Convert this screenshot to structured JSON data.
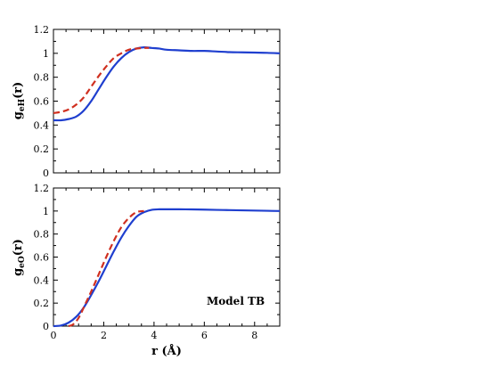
{
  "chart_data": [
    {
      "type": "line",
      "ylabel_main": "g",
      "ylabel_sub": "eH",
      "ylabel_tail": "(r)",
      "xlim": [
        0,
        9
      ],
      "ylim": [
        0,
        1.2
      ],
      "xticks": [
        0,
        2,
        4,
        6,
        8
      ],
      "yticks": [
        0,
        0.2,
        0.4,
        0.6,
        0.8,
        1,
        1.2
      ],
      "ytick_labels": [
        "0",
        "0.2",
        "0.4",
        "0.6",
        "0.8",
        "1",
        "1.2"
      ],
      "series": [
        {
          "style": "solid",
          "color": "#1f3fcf",
          "x": [
            0,
            0.3,
            0.6,
            0.9,
            1.2,
            1.5,
            1.8,
            2.1,
            2.4,
            2.7,
            3.0,
            3.3,
            3.6,
            3.9,
            4.2,
            4.5,
            5,
            5.5,
            6,
            6.5,
            7,
            7.5,
            8,
            8.5,
            9
          ],
          "y": [
            0.44,
            0.44,
            0.45,
            0.47,
            0.52,
            0.6,
            0.7,
            0.8,
            0.89,
            0.96,
            1.01,
            1.04,
            1.05,
            1.045,
            1.04,
            1.03,
            1.025,
            1.02,
            1.02,
            1.015,
            1.01,
            1.008,
            1.006,
            1.004,
            1.0
          ]
        },
        {
          "style": "dashed",
          "color": "#d03020",
          "x": [
            0,
            0.3,
            0.6,
            0.9,
            1.2,
            1.5,
            1.8,
            2.1,
            2.4,
            2.7,
            3.0,
            3.3,
            3.6,
            3.8
          ],
          "y": [
            0.5,
            0.51,
            0.53,
            0.57,
            0.63,
            0.72,
            0.81,
            0.89,
            0.96,
            1.0,
            1.03,
            1.04,
            1.045,
            1.045
          ]
        }
      ]
    },
    {
      "type": "line",
      "ylabel_main": "g",
      "ylabel_sub": "eO",
      "ylabel_tail": "(r)",
      "xlabel": "r (Å)",
      "annotation": "Model TB",
      "xlim": [
        0,
        9
      ],
      "ylim": [
        0,
        1.2
      ],
      "xticks": [
        0,
        2,
        4,
        6,
        8
      ],
      "xtick_labels": [
        "0",
        "2",
        "4",
        "6",
        "8"
      ],
      "yticks": [
        0,
        0.2,
        0.4,
        0.6,
        0.8,
        1,
        1.2
      ],
      "ytick_labels": [
        "0",
        "0.2",
        "0.4",
        "0.6",
        "0.8",
        "1",
        "1.2"
      ],
      "series": [
        {
          "style": "solid",
          "color": "#1f3fcf",
          "x": [
            0,
            0.3,
            0.6,
            0.9,
            1.2,
            1.5,
            1.8,
            2.1,
            2.4,
            2.7,
            3.0,
            3.3,
            3.6,
            3.9,
            4.2,
            4.5,
            5,
            5.5,
            6,
            6.5,
            7,
            7.5,
            8,
            8.5,
            9
          ],
          "y": [
            0.0,
            0.005,
            0.03,
            0.08,
            0.16,
            0.27,
            0.39,
            0.52,
            0.65,
            0.77,
            0.87,
            0.95,
            0.99,
            1.01,
            1.015,
            1.015,
            1.015,
            1.014,
            1.012,
            1.01,
            1.008,
            1.006,
            1.004,
            1.002,
            1.0
          ]
        },
        {
          "style": "dashed",
          "color": "#d03020",
          "x": [
            0.6,
            0.75,
            0.9,
            1.05,
            1.2,
            1.5,
            1.8,
            2.1,
            2.4,
            2.7,
            3.0,
            3.3,
            3.6
          ],
          "y": [
            0.0,
            0.01,
            0.04,
            0.09,
            0.16,
            0.3,
            0.45,
            0.6,
            0.74,
            0.86,
            0.94,
            0.99,
            1.0
          ]
        }
      ]
    }
  ]
}
